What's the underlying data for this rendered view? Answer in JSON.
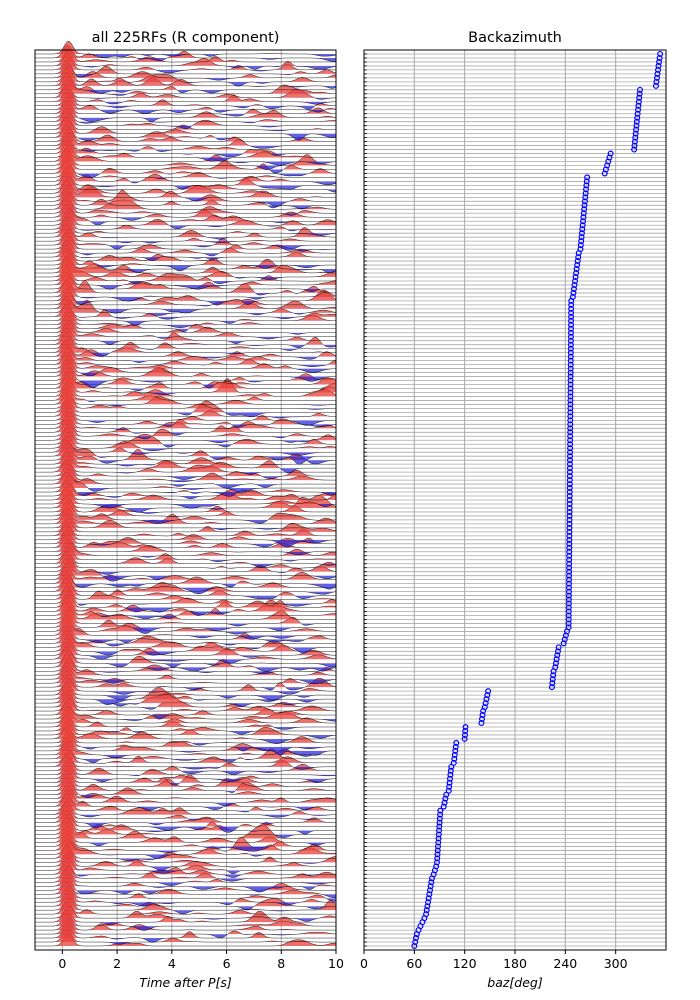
{
  "chart_data": [
    {
      "type": "line",
      "title": "all 225RFs (R component)",
      "xlabel": "Time after P[s]",
      "xlim": [
        -1,
        10
      ],
      "xticks": [
        0,
        2,
        4,
        6,
        8,
        10
      ],
      "trace_count": 225,
      "grid": "vertical",
      "fill_positive_color": "#e8403a",
      "fill_negative_color": "#2020d8",
      "main_pulse_time_s": 0.2,
      "note_values": "per-trace amplitudes are not printed on the figure"
    },
    {
      "type": "scatter",
      "title": "Backazimuth",
      "xlabel": "baz[deg]",
      "xlim": [
        0,
        360
      ],
      "xticks": [
        0,
        60,
        120,
        180,
        240,
        300
      ],
      "grid": "both",
      "marker": "open-circle",
      "marker_color": "#0000ff",
      "baz_groups": [
        {
          "baz_start": 60,
          "baz_end": 63,
          "count": 4
        },
        {
          "baz_start": 65,
          "baz_end": 72,
          "count": 4
        },
        {
          "baz_start": 74,
          "baz_end": 81,
          "count": 10
        },
        {
          "baz_start": 83,
          "baz_end": 86,
          "count": 3
        },
        {
          "baz_start": 87,
          "baz_end": 91,
          "count": 14
        },
        {
          "baz_start": 95,
          "baz_end": 98,
          "count": 4
        },
        {
          "baz_start": 101,
          "baz_end": 104,
          "count": 7
        },
        {
          "baz_start": 107,
          "baz_end": 110,
          "count": 6
        },
        {
          "baz_start": 120,
          "baz_end": 121,
          "count": 4
        },
        {
          "baz_start": 140,
          "baz_end": 142,
          "count": 4
        },
        {
          "baz_start": 144,
          "baz_end": 148,
          "count": 5
        },
        {
          "baz_start": 224,
          "baz_end": 226,
          "count": 5
        },
        {
          "baz_start": 228,
          "baz_end": 232,
          "count": 6
        },
        {
          "baz_start": 238,
          "baz_end": 242,
          "count": 4
        },
        {
          "baz_start": 244,
          "baz_end": 247,
          "count": 83
        },
        {
          "baz_start": 249,
          "baz_end": 256,
          "count": 12
        },
        {
          "baz_start": 258,
          "baz_end": 266,
          "count": 19
        },
        {
          "baz_start": 287,
          "baz_end": 294,
          "count": 6
        },
        {
          "baz_start": 322,
          "baz_end": 329,
          "count": 16
        },
        {
          "baz_start": 348,
          "baz_end": 353,
          "count": 9
        }
      ]
    }
  ]
}
